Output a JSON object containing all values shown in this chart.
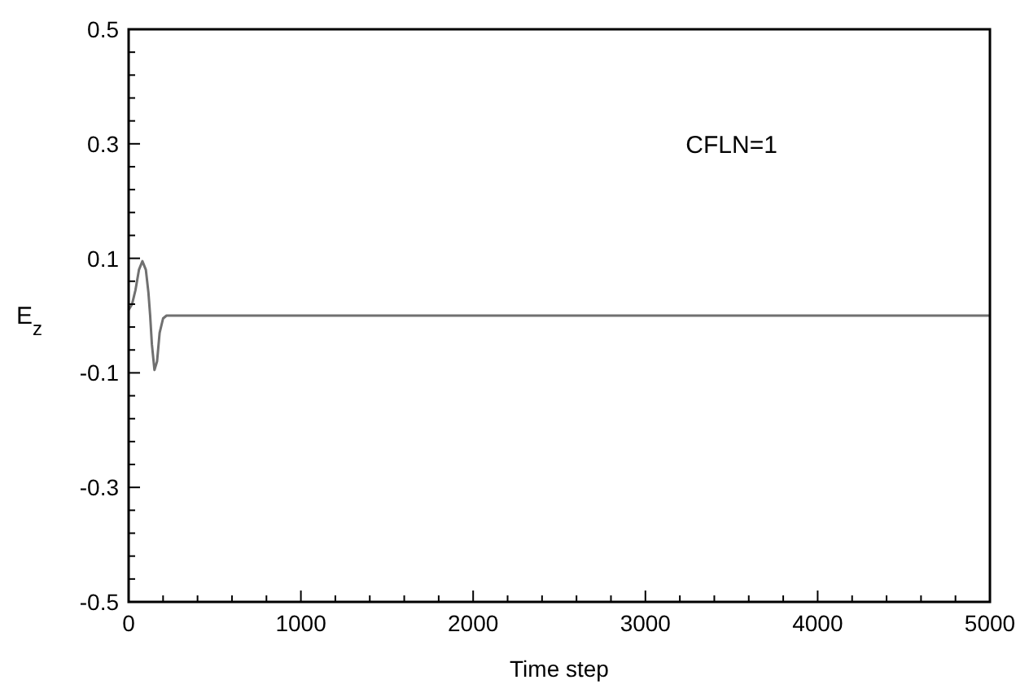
{
  "chart_data": {
    "type": "line",
    "xlabel": "Time step",
    "ylabel": "E$_{z}$",
    "annotations": [
      "CFLN=1"
    ],
    "x": [
      0,
      20,
      40,
      60,
      80,
      100,
      115,
      125,
      135,
      150,
      165,
      180,
      200,
      220,
      250,
      300,
      1000,
      2000,
      3000,
      4000,
      5000
    ],
    "series": [
      {
        "color": "#707070",
        "values": [
          0.01,
          0.02,
          0.045,
          0.08,
          0.095,
          0.08,
          0.04,
          0.0,
          -0.05,
          -0.095,
          -0.08,
          -0.03,
          -0.005,
          0.0,
          0.0,
          0.0,
          0.0,
          0.0,
          0.0,
          0.0,
          0.0
        ]
      }
    ],
    "xlim": [
      0,
      5000
    ],
    "ylim": [
      -0.5,
      0.5
    ],
    "xticks": [
      0,
      {
        "value": 200,
        "label": null
      },
      {
        "value": 400,
        "label": null
      },
      {
        "value": 600,
        "label": null
      },
      {
        "value": 800,
        "label": null
      },
      1000,
      {
        "value": 1200,
        "label": null
      },
      {
        "value": 1400,
        "label": null
      },
      {
        "value": 1600,
        "label": null
      },
      {
        "value": 1800,
        "label": null
      },
      2000,
      {
        "value": 2200,
        "label": null
      },
      {
        "value": 2400,
        "label": null
      },
      {
        "value": 2600,
        "label": null
      },
      {
        "value": 2800,
        "label": null
      },
      3000,
      {
        "value": 3200,
        "label": null
      },
      {
        "value": 3400,
        "label": null
      },
      {
        "value": 3600,
        "label": null
      },
      {
        "value": 3800,
        "label": null
      },
      4000,
      {
        "value": 4200,
        "label": null
      },
      {
        "value": 4400,
        "label": null
      },
      {
        "value": 4600,
        "label": null
      },
      {
        "value": 4800,
        "label": null
      },
      5000
    ],
    "yticks": [
      -0.5,
      {
        "value": -0.46,
        "label": null
      },
      {
        "value": -0.42,
        "label": null
      },
      {
        "value": -0.38,
        "label": null
      },
      {
        "value": -0.34,
        "label": null
      },
      -0.3,
      {
        "value": -0.26,
        "label": null
      },
      {
        "value": -0.22,
        "label": null
      },
      {
        "value": -0.18,
        "label": null
      },
      {
        "value": -0.14,
        "label": null
      },
      -0.1,
      {
        "value": -0.06,
        "label": null
      },
      {
        "value": -0.02,
        "label": null
      },
      {
        "value": 0.02,
        "label": null
      },
      {
        "value": 0.06,
        "label": null
      },
      0.1,
      {
        "value": 0.14,
        "label": null
      },
      {
        "value": 0.18,
        "label": null
      },
      {
        "value": 0.22,
        "label": null
      },
      {
        "value": 0.26,
        "label": null
      },
      0.3,
      {
        "value": 0.34,
        "label": null
      },
      {
        "value": 0.38,
        "label": null
      },
      {
        "value": 0.42,
        "label": null
      },
      {
        "value": 0.46,
        "label": null
      },
      0.5
    ],
    "grid": false,
    "marker": "none",
    "line_style": "solid"
  }
}
